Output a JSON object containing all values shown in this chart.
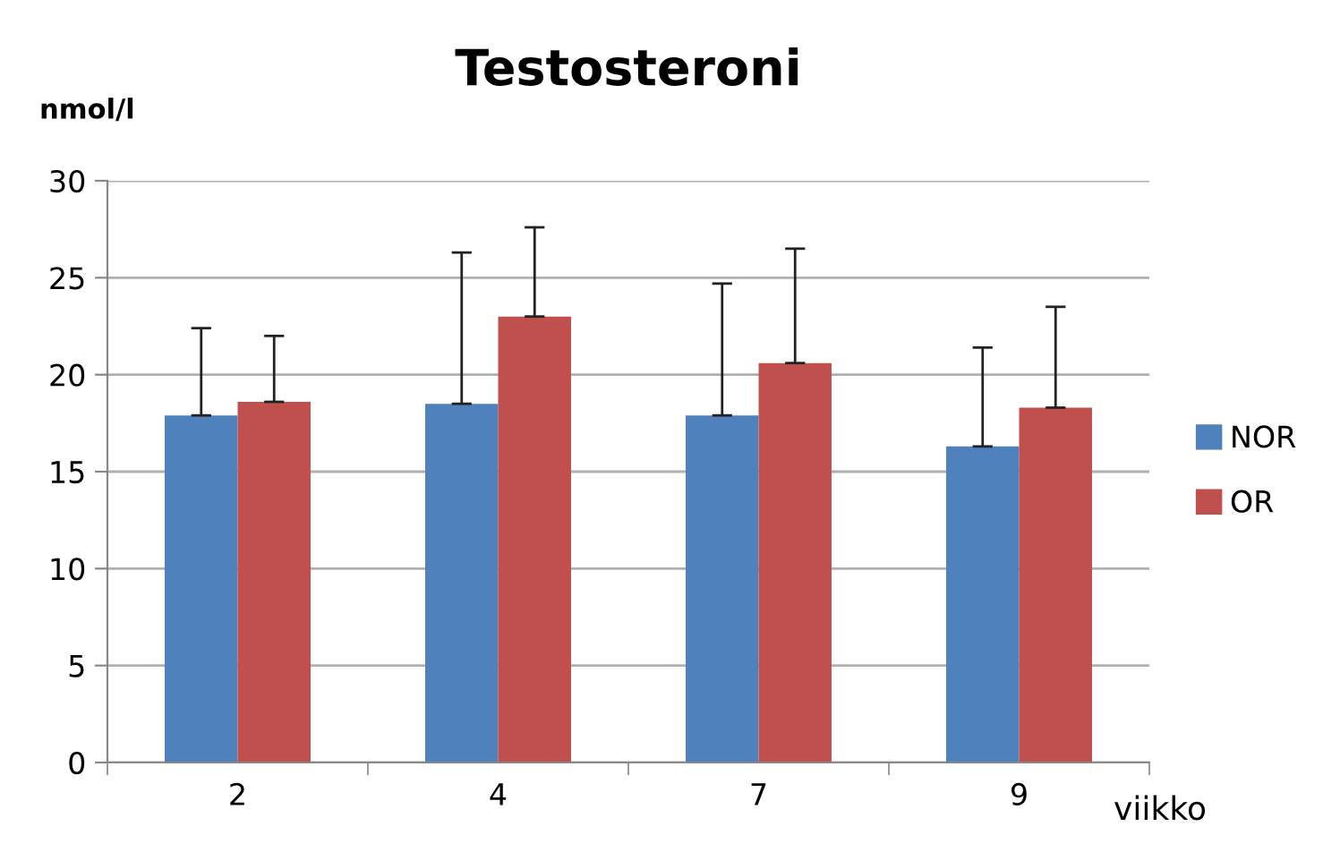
{
  "chart_data": {
    "type": "bar",
    "title": "Testosteroni",
    "ylabel": "nmol/l",
    "xlabel": "viikko",
    "categories": [
      "2",
      "4",
      "7",
      "9"
    ],
    "series": [
      {
        "name": "NOR",
        "color": "#4f81bd",
        "values": [
          17.9,
          18.5,
          17.9,
          16.3
        ],
        "errors": [
          [
            17.9,
            22.4
          ],
          [
            18.5,
            26.3
          ],
          [
            17.9,
            24.7
          ],
          [
            16.3,
            21.4
          ]
        ]
      },
      {
        "name": "OR",
        "color": "#c0504d",
        "values": [
          18.6,
          23.0,
          20.6,
          18.3
        ],
        "errors": [
          [
            18.6,
            22.0
          ],
          [
            23.0,
            27.6
          ],
          [
            20.6,
            26.5
          ],
          [
            18.3,
            23.5
          ]
        ]
      }
    ],
    "ylim": [
      0,
      30
    ],
    "yticks": [
      0,
      5,
      10,
      15,
      20,
      25,
      30
    ],
    "grid": "y",
    "legend": "right"
  }
}
